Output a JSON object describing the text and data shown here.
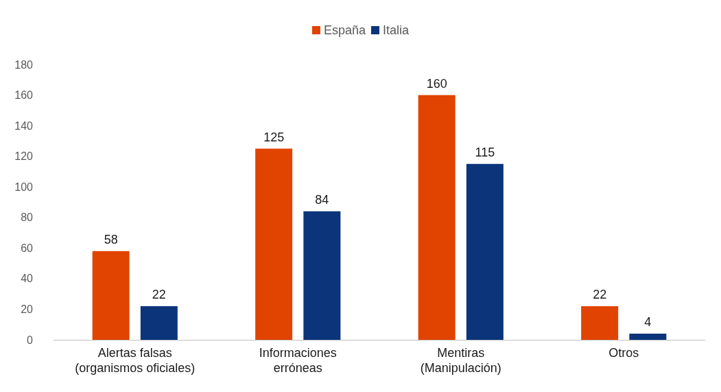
{
  "chart_data": {
    "type": "bar",
    "categories": [
      "Alertas falsas\n(organismos oficiales)",
      "Informaciones\nerróneas",
      "Mentiras\n(Manipulación)",
      "Otros"
    ],
    "series": [
      {
        "name": "España",
        "color": "#e04400",
        "values": [
          58,
          125,
          160,
          22
        ]
      },
      {
        "name": "Italia",
        "color": "#0b347a",
        "values": [
          22,
          84,
          115,
          4
        ]
      }
    ],
    "ylim": [
      0,
      180
    ],
    "yticks": [
      0,
      20,
      40,
      60,
      80,
      100,
      120,
      140,
      160,
      180
    ],
    "grid": false,
    "legend": "top",
    "data_labels": true
  }
}
